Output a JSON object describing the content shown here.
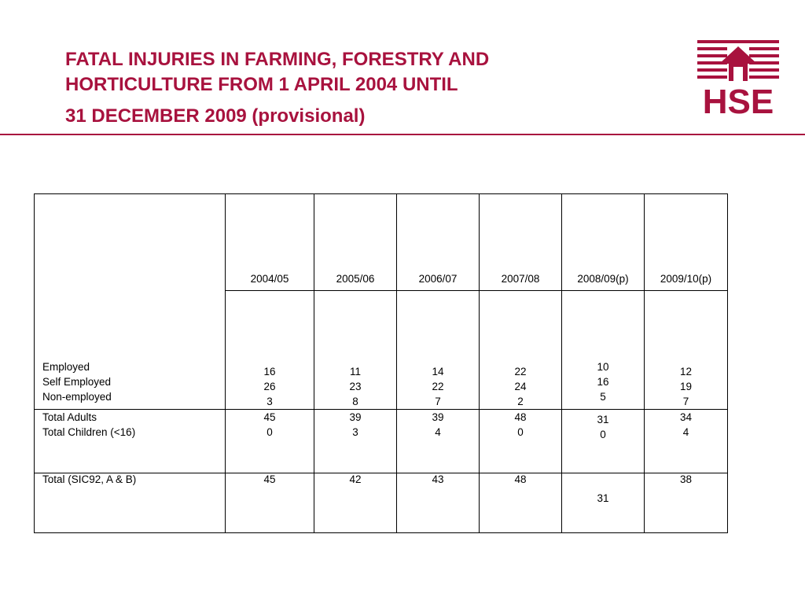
{
  "title": {
    "line1": "FATAL INJURIES IN FARMING, FORESTRY AND",
    "line2": "HORTICULTURE FROM 1 APRIL 2004 UNTIL",
    "line3": "31 DECEMBER 2009 (provisional)"
  },
  "logo": {
    "text": "HSE",
    "icon": "hse-logo",
    "color": "#a8123e"
  },
  "accent_color": "#a8123e",
  "table": {
    "columns": [
      "2004/05",
      "2005/06",
      "2006/07",
      "2007/08",
      "2008/09(p)",
      "2009/10(p)"
    ],
    "groups": [
      {
        "labels": [
          "Employed",
          "Self Employed",
          "Non-employed"
        ],
        "values": [
          [
            "16",
            "26",
            "3"
          ],
          [
            "11",
            "23",
            "8"
          ],
          [
            "14",
            "22",
            "7"
          ],
          [
            "22",
            "24",
            "2"
          ],
          [
            "10",
            "16",
            "5"
          ],
          [
            "12",
            "19",
            "7"
          ]
        ]
      },
      {
        "labels": [
          "Total Adults",
          "Total Children (<16)"
        ],
        "values": [
          [
            "45",
            "0"
          ],
          [
            "39",
            "3"
          ],
          [
            "39",
            "4"
          ],
          [
            "48",
            "0"
          ],
          [
            "31",
            "0"
          ],
          [
            "34",
            "4"
          ]
        ]
      },
      {
        "labels": [
          "Total (SIC92, A & B)"
        ],
        "values": [
          [
            "45"
          ],
          [
            "42"
          ],
          [
            "43"
          ],
          [
            "48"
          ],
          [
            "31"
          ],
          [
            "38"
          ]
        ]
      }
    ]
  }
}
